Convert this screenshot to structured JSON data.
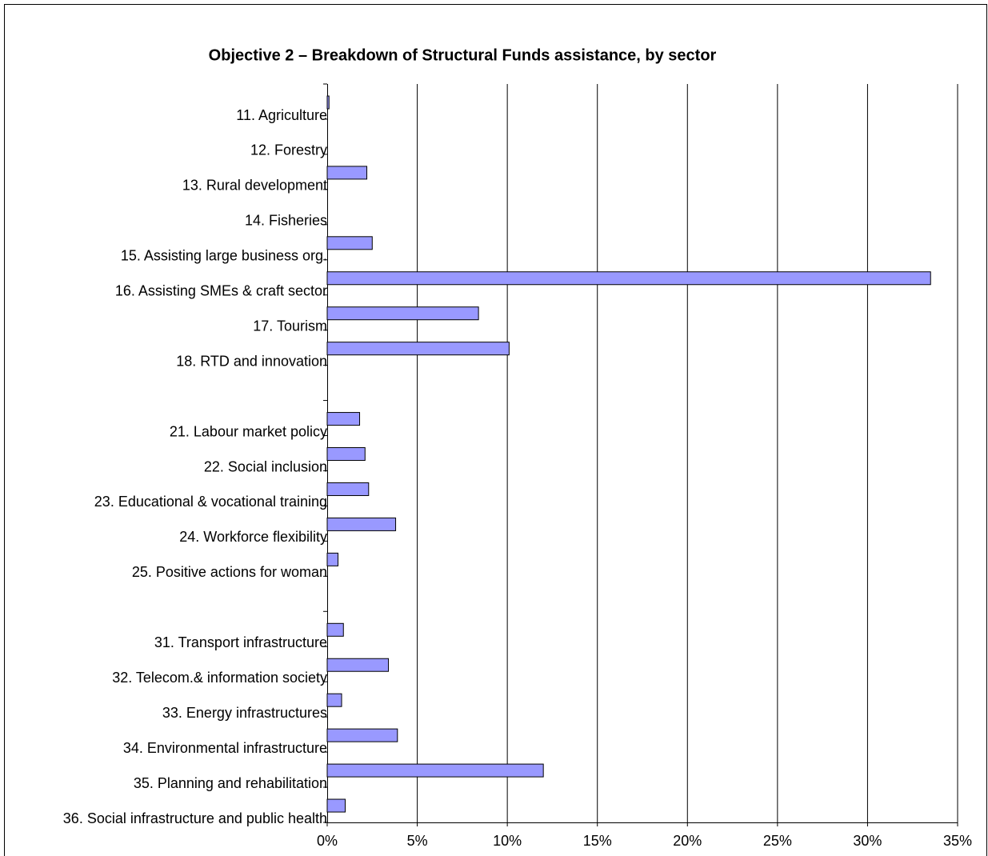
{
  "chart_data": {
    "type": "hbar",
    "title": "Objective 2 – Breakdown of Structural Funds assistance, by sector",
    "categories": [
      "11. Agriculture",
      "12. Forestry",
      "13. Rural development",
      "14. Fisheries",
      "15. Assisting large business org.",
      "16. Assisting SMEs & craft sector",
      "17. Tourism",
      "18. RTD and innovation",
      null,
      "21. Labour market policy",
      "22. Social inclusion",
      "23. Educational & vocational training",
      "24. Workforce flexibility",
      "25. Positive actions for woman",
      null,
      "31. Transport infrastructure",
      "32. Telecom.& information society",
      "33. Energy infrastructures",
      "34. Environmental infrastructure",
      "35. Planning and rehabilitation",
      "36. Social infrastructure and public health"
    ],
    "values": [
      0.1,
      0,
      2.2,
      0,
      2.5,
      33.5,
      8.4,
      10.1,
      null,
      1.8,
      2.1,
      2.3,
      3.8,
      0.6,
      null,
      0.9,
      3.4,
      0.8,
      3.9,
      12.0,
      1.0
    ],
    "color": "#9999ff",
    "xlim": [
      0,
      35
    ],
    "xticks": [
      {
        "value": 0,
        "label": "0%"
      },
      {
        "value": 5,
        "label": "5%"
      },
      {
        "value": 10,
        "label": "10%"
      },
      {
        "value": 15,
        "label": "15%"
      },
      {
        "value": 20,
        "label": "20%"
      },
      {
        "value": 25,
        "label": "25%"
      },
      {
        "value": 30,
        "label": "30%"
      },
      {
        "value": 35,
        "label": "35%"
      }
    ],
    "grid": true
  }
}
